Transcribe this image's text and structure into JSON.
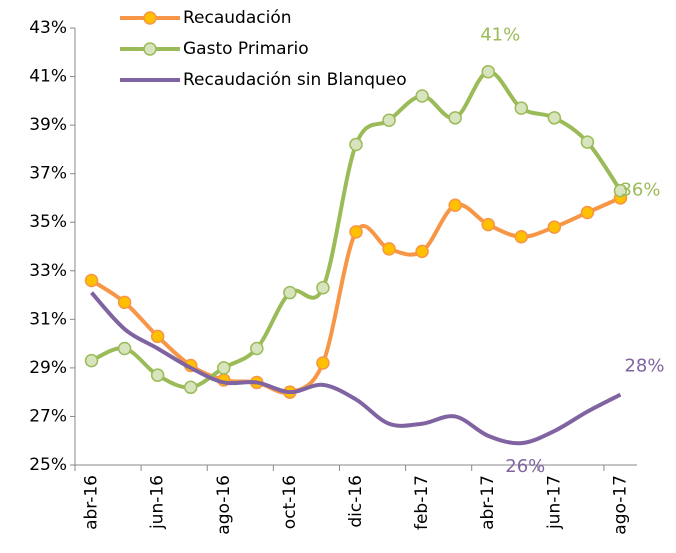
{
  "chart_data": {
    "type": "line",
    "categories": [
      "abr-16",
      null,
      "jun-16",
      null,
      "ago-16",
      null,
      "oct-16",
      null,
      "dic-16",
      null,
      "feb-17",
      null,
      "abr-17",
      null,
      "jun-17",
      null,
      "ago-17"
    ],
    "series": [
      {
        "name": "Recaudación",
        "color": "#F79646",
        "marker_color": "#FFC000",
        "values": [
          32.6,
          31.7,
          30.3,
          29.1,
          28.5,
          28.4,
          28.0,
          29.2,
          34.6,
          33.9,
          33.8,
          35.7,
          34.9,
          34.4,
          34.8,
          35.4,
          36.0
        ]
      },
      {
        "name": "Gasto Primario",
        "color": "#9BBB59",
        "marker_color": "#D7E4BD",
        "values": [
          29.3,
          29.8,
          28.7,
          28.2,
          29.0,
          29.8,
          32.1,
          32.3,
          38.2,
          39.2,
          40.2,
          39.3,
          41.2,
          39.7,
          39.3,
          38.3,
          36.3
        ],
        "value_labels": [
          null,
          null,
          null,
          null,
          null,
          null,
          null,
          null,
          null,
          null,
          null,
          null,
          "41%",
          null,
          null,
          null,
          "36%"
        ]
      },
      {
        "name": "Recaudación sin Blanqueo",
        "color": "#8064A2",
        "values": [
          32.1,
          30.6,
          29.8,
          29.0,
          28.4,
          28.4,
          28.0,
          28.3,
          27.7,
          26.7,
          26.7,
          27.0,
          26.2,
          25.9,
          26.4,
          27.2,
          27.9
        ],
        "value_labels": [
          null,
          null,
          null,
          null,
          null,
          null,
          null,
          null,
          null,
          null,
          null,
          null,
          null,
          "26%",
          null,
          null,
          "28%"
        ]
      }
    ],
    "ylim": [
      25,
      43
    ],
    "yticks": [
      {
        "value": 25,
        "label": "25%"
      },
      {
        "value": 27,
        "label": "27%"
      },
      {
        "value": 29,
        "label": "29%"
      },
      {
        "value": 31,
        "label": "31%"
      },
      {
        "value": 33,
        "label": "33%"
      },
      {
        "value": 35,
        "label": "35%"
      },
      {
        "value": 37,
        "label": "37%"
      },
      {
        "value": 39,
        "label": "39%"
      },
      {
        "value": 41,
        "label": "41%"
      },
      {
        "value": 43,
        "label": "43%"
      }
    ],
    "grid": false
  }
}
